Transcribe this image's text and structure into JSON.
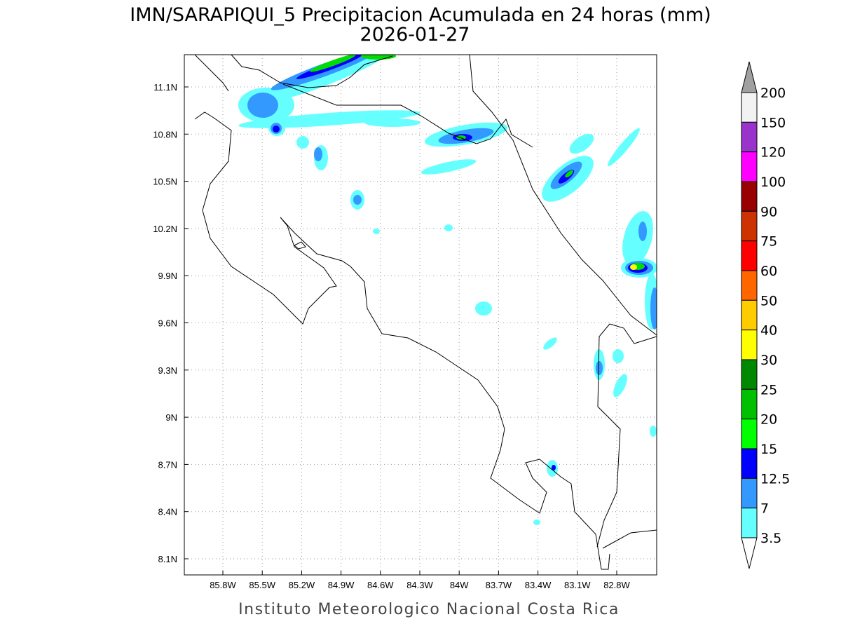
{
  "title": "IMN/SARAPIQUI_5 Precipitacion Acumulada en 24 horas (mm)",
  "subtitle": "2026-01-27",
  "footer": "Instituto Meteorologico Nacional Costa Rica",
  "lon_labels": [
    "85.8W",
    "85.5W",
    "85.2W",
    "84.9W",
    "84.6W",
    "84.3W",
    "84W",
    "83.7W",
    "83.4W",
    "83.1W",
    "82.8W"
  ],
  "lat_labels": [
    "11.1N",
    "10.8N",
    "10.5N",
    "10.2N",
    "9.9N",
    "9.6N",
    "9.3N",
    "9N",
    "8.7N",
    "8.4N",
    "8.1N"
  ],
  "legend": {
    "labels": [
      "200",
      "150",
      "120",
      "100",
      "90",
      "75",
      "60",
      "50",
      "40",
      "30",
      "25",
      "20",
      "15",
      "12.5",
      "7",
      "3.5"
    ],
    "colors": [
      "#f2f2f2",
      "#9933cc",
      "#ff00ff",
      "#990000",
      "#cc3300",
      "#ff0000",
      "#ff6600",
      "#ffcc00",
      "#ffff00",
      "#008800",
      "#00c000",
      "#00ff00",
      "#0000ff",
      "#3399ff",
      "#66ffff"
    ],
    "over_color": "#a0a0a0",
    "under_color": "#ffffff"
  }
}
